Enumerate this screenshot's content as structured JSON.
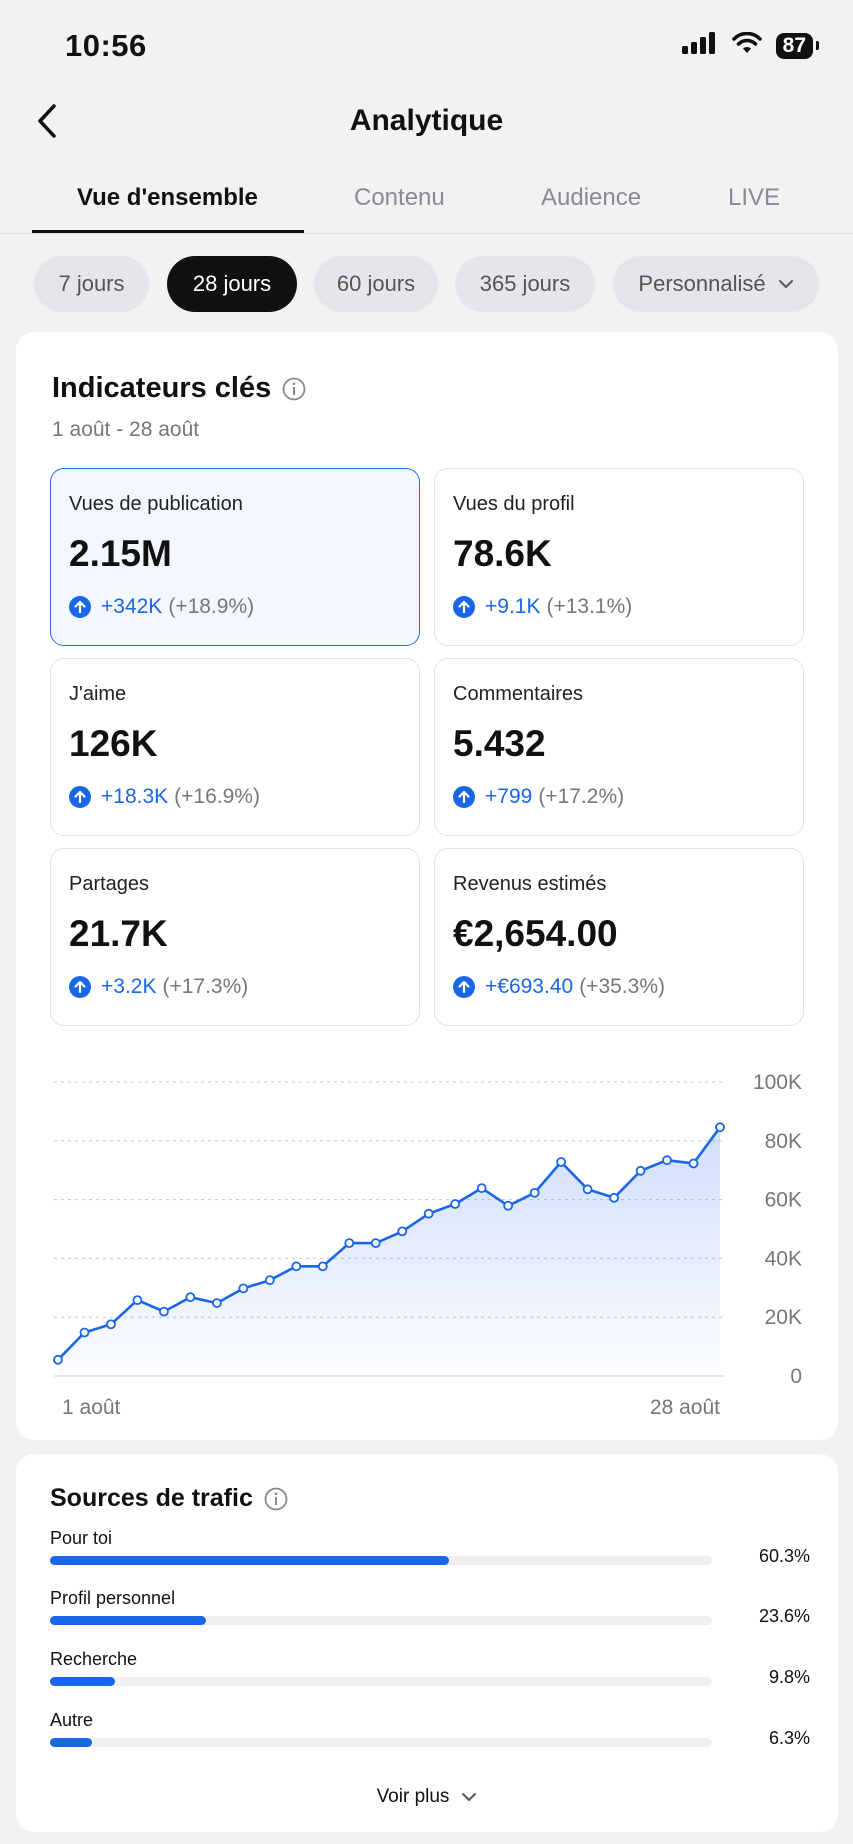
{
  "status_bar": {
    "time": "10:56",
    "battery": "87",
    "icons": [
      "signal-icon",
      "wifi-icon",
      "battery-icon"
    ]
  },
  "nav": {
    "title": "Analytique",
    "back_icon": "chevron-left-icon"
  },
  "tabs": [
    {
      "label": "Vue d'ensemble",
      "active": true
    },
    {
      "label": "Contenu",
      "active": false
    },
    {
      "label": "Audience",
      "active": false
    },
    {
      "label": "LIVE",
      "active": false
    }
  ],
  "date_filters": [
    {
      "label": "7 jours",
      "active": false
    },
    {
      "label": "28 jours",
      "active": true
    },
    {
      "label": "60 jours",
      "active": false
    },
    {
      "label": "365 jours",
      "active": false
    },
    {
      "label": "Personnalisé",
      "active": false,
      "icon": "chevron-down-icon"
    }
  ],
  "key_metrics": {
    "title": "Indicateurs clés",
    "date_range": "1 août - 28 août",
    "items": [
      {
        "label": "Vues de publication",
        "value": "2.15M",
        "delta": "+342K",
        "delta_pct": "(+18.9%)",
        "selected": true
      },
      {
        "label": "Vues du profil",
        "value": "78.6K",
        "delta": "+9.1K",
        "delta_pct": "(+13.1%)",
        "selected": false
      },
      {
        "label": "J'aime",
        "value": "126K",
        "delta": "+18.3K",
        "delta_pct": "(+16.9%)",
        "selected": false
      },
      {
        "label": "Commentaires",
        "value": "5.432",
        "delta": "+799",
        "delta_pct": "(+17.2%)",
        "selected": false
      },
      {
        "label": "Partages",
        "value": "21.7K",
        "delta": "+3.2K",
        "delta_pct": "(+17.3%)",
        "selected": false
      },
      {
        "label": "Revenus estimés",
        "value": "€2,654.00",
        "delta": "+€693.40",
        "delta_pct": "(+35.3%)",
        "selected": false
      }
    ]
  },
  "chart_data": {
    "type": "area",
    "title": "",
    "xlabel": "",
    "ylabel": "",
    "x_tick_labels": [
      "1 août",
      "28 août"
    ],
    "y_tick_labels": [
      "100K",
      "80K",
      "60K",
      "40K",
      "20K",
      "0"
    ],
    "y_ticks": [
      100000,
      80000,
      60000,
      40000,
      20000,
      0
    ],
    "ylim": [
      0,
      100000
    ],
    "x": [
      1,
      2,
      3,
      4,
      5,
      6,
      7,
      8,
      9,
      10,
      11,
      12,
      13,
      14,
      15,
      16,
      17,
      18,
      19,
      20,
      21,
      22,
      23,
      24,
      25,
      26,
      27,
      28
    ],
    "series": [
      {
        "values": [
          5500,
          14800,
          17600,
          25800,
          21900,
          26800,
          24800,
          29800,
          32600,
          37300,
          37300,
          45200,
          45200,
          49200,
          55200,
          58500,
          63900,
          57900,
          62300,
          72800,
          63500,
          60600,
          69800,
          73400,
          72300,
          84600,
          84600,
          84600
        ]
      }
    ],
    "grid": true,
    "legend": "none",
    "line_color": "#1a66e8"
  },
  "traffic_sources": {
    "title": "Sources de trafic",
    "items": [
      {
        "label": "Pour toi",
        "pct_text": "60.3%",
        "value": 60.3
      },
      {
        "label": "Profil personnel",
        "pct_text": "23.6%",
        "value": 23.6
      },
      {
        "label": "Recherche",
        "pct_text": "9.8%",
        "value": 9.8
      },
      {
        "label": "Autre",
        "pct_text": "6.3%",
        "value": 6.3
      }
    ],
    "see_more": "Voir plus"
  },
  "colors": {
    "accent": "#1a66e8",
    "background": "#f2f2f4",
    "card": "#ffffff"
  }
}
